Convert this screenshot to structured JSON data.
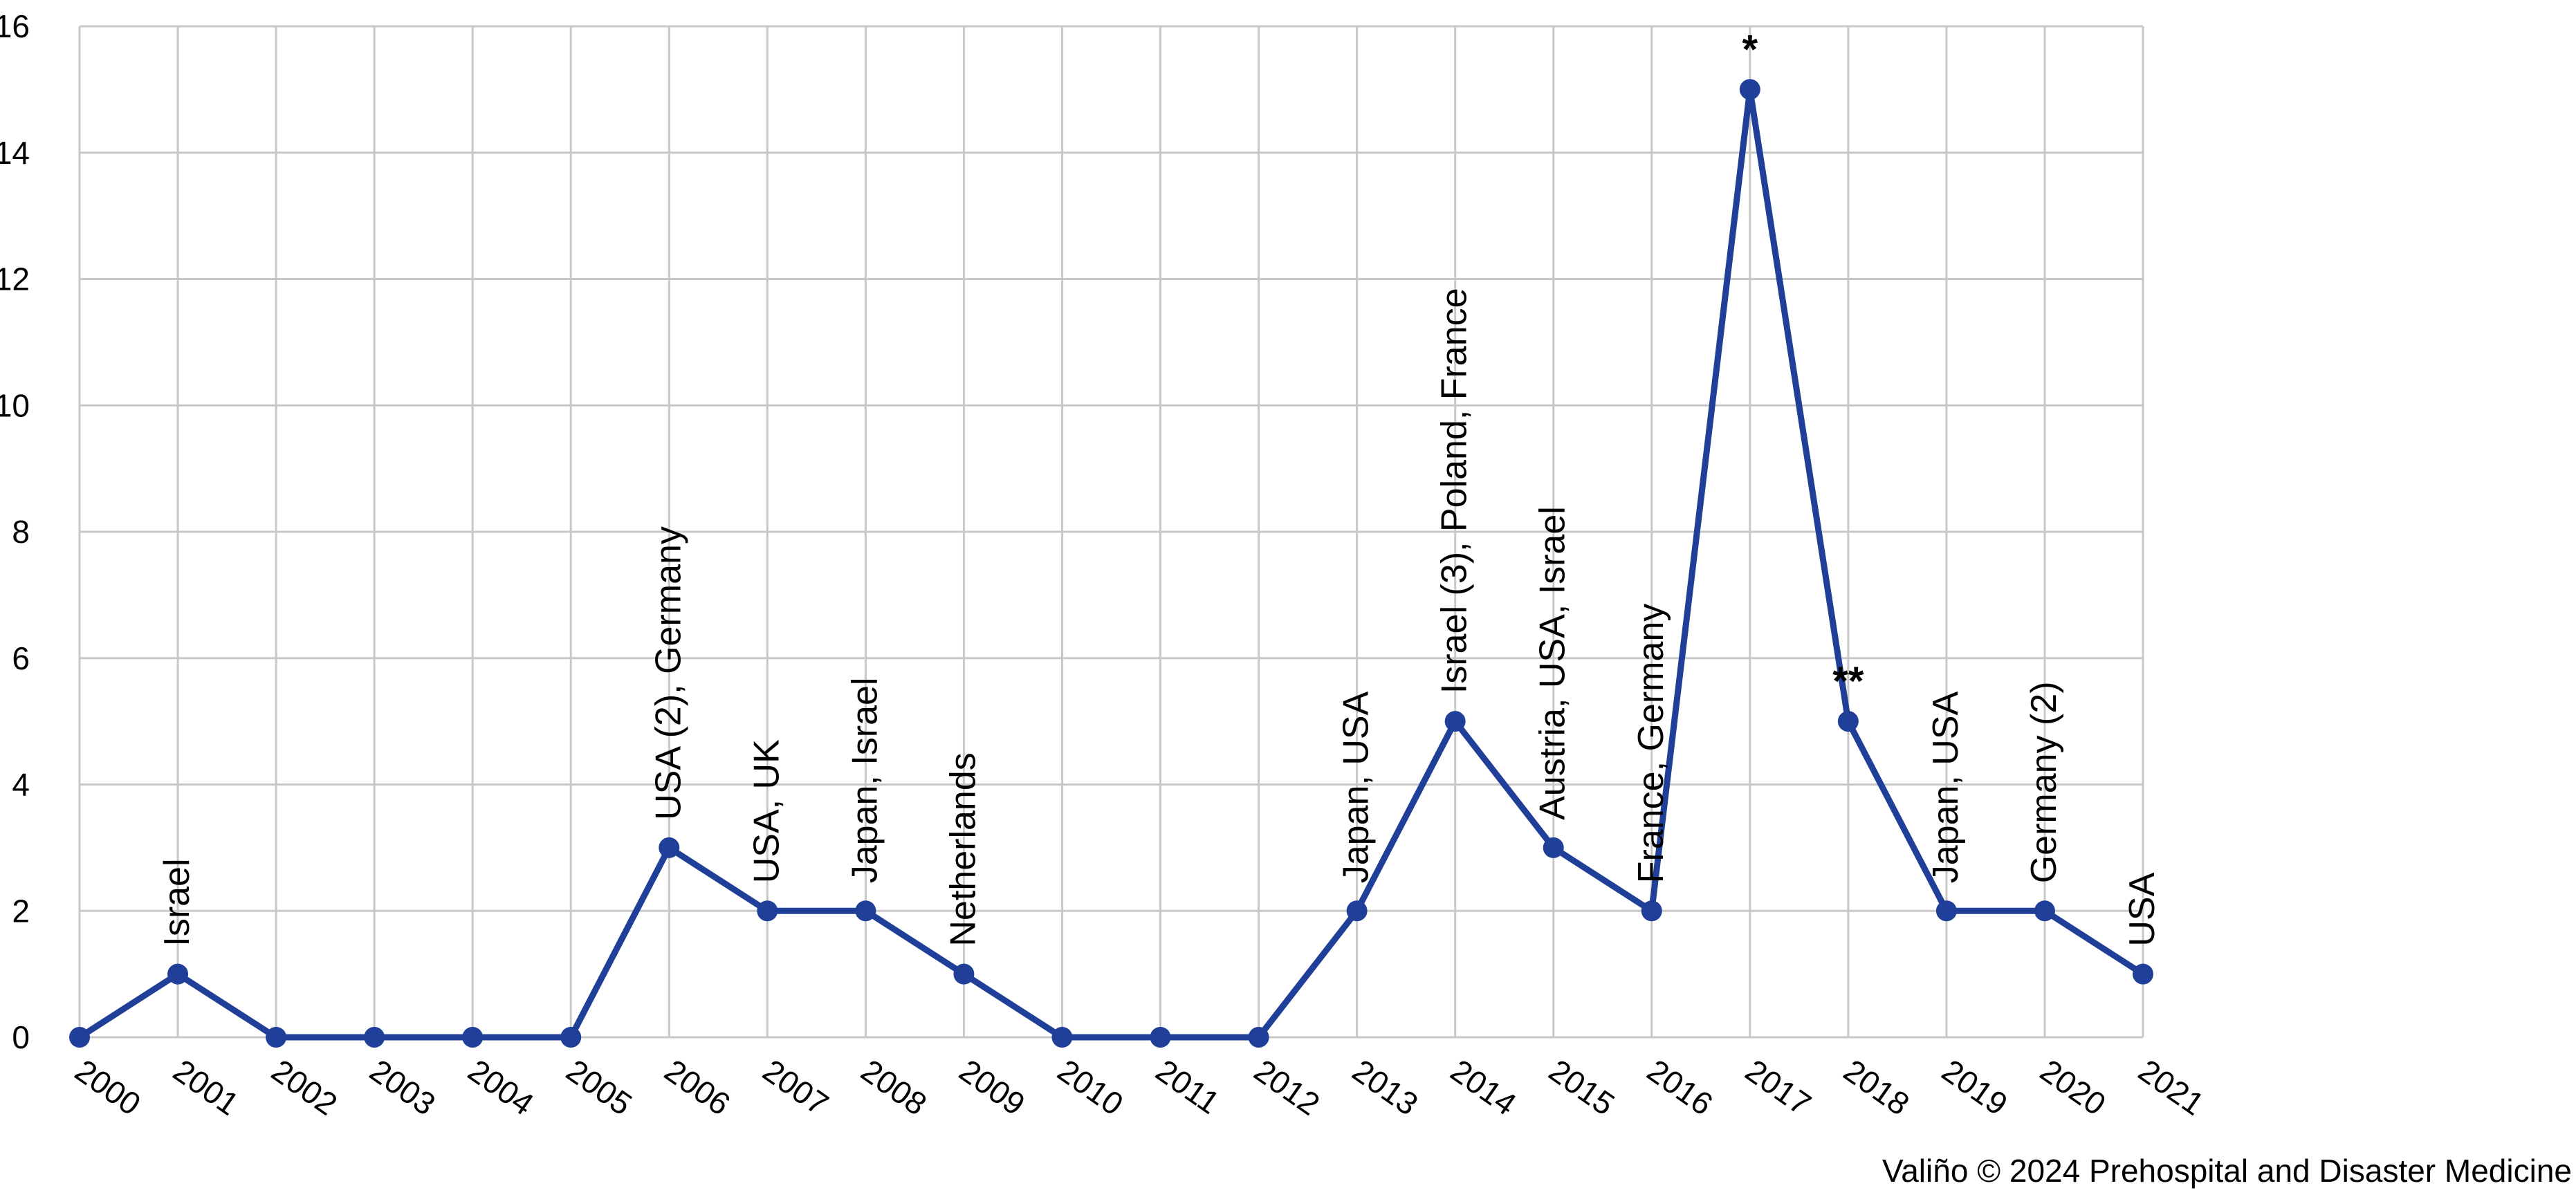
{
  "chart_data": {
    "type": "line",
    "title": "",
    "xlabel": "",
    "ylabel": "",
    "categories": [
      "2000",
      "2001",
      "2002",
      "2003",
      "2004",
      "2005",
      "2006",
      "2007",
      "2008",
      "2009",
      "2010",
      "2011",
      "2012",
      "2013",
      "2014",
      "2015",
      "2016",
      "2017",
      "2018",
      "2019",
      "2020",
      "2021"
    ],
    "values": [
      0,
      1,
      0,
      0,
      0,
      0,
      3,
      2,
      2,
      1,
      0,
      0,
      0,
      2,
      5,
      3,
      2,
      15,
      5,
      2,
      2,
      1
    ],
    "ylim": [
      0,
      16
    ],
    "yticks": [
      "0",
      "2",
      "4",
      "6",
      "8",
      "10",
      "12",
      "14",
      "16"
    ],
    "grid": true,
    "line_color": "#1f3f99",
    "annotations": [
      {
        "index": 1,
        "text": "Israel"
      },
      {
        "index": 6,
        "text": "USA (2), Germany"
      },
      {
        "index": 7,
        "text": "USA, UK"
      },
      {
        "index": 8,
        "text": "Japan, Israel"
      },
      {
        "index": 9,
        "text": "Netherlands"
      },
      {
        "index": 13,
        "text": "Japan, USA"
      },
      {
        "index": 14,
        "text": "Israel (3), Poland, France"
      },
      {
        "index": 15,
        "text": "Austria, USA, Israel"
      },
      {
        "index": 16,
        "text": "France, Germany"
      },
      {
        "index": 17,
        "text": "*"
      },
      {
        "index": 18,
        "text": "**"
      },
      {
        "index": 19,
        "text": "Japan, USA"
      },
      {
        "index": 20,
        "text": "Germany (2)"
      },
      {
        "index": 21,
        "text": "USA"
      }
    ]
  },
  "credit": "Valiño © 2024 Prehospital and Disaster Medicine"
}
